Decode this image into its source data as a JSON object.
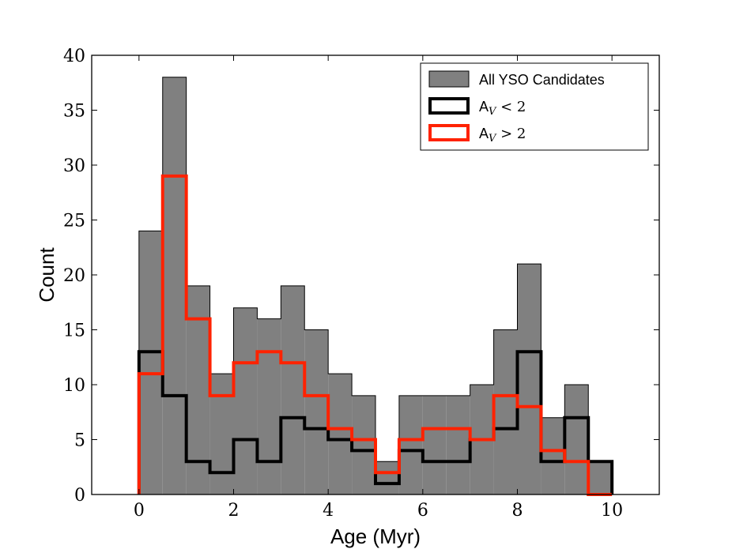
{
  "chart_data": {
    "type": "histogram",
    "bin_width": 0.5,
    "bin_start": 0,
    "xlim": [
      -1,
      11
    ],
    "ylim": [
      0,
      40
    ],
    "xticks": [
      0,
      2,
      4,
      6,
      8,
      10
    ],
    "yticks": [
      0,
      5,
      10,
      15,
      20,
      25,
      30,
      35,
      40
    ],
    "xlabel": "Age (Myr)",
    "ylabel": "Count",
    "legend_position": "top-right",
    "series": [
      {
        "name": "All YSO Candidates",
        "style": "filled",
        "color": "#808080",
        "edge_color": "#000000",
        "values": [
          24,
          38,
          19,
          11,
          17,
          16,
          19,
          15,
          11,
          9,
          3,
          9,
          9,
          9,
          10,
          15,
          21,
          7,
          10,
          3
        ]
      },
      {
        "name": "A_V < 2",
        "legend_label_prefix": "A",
        "legend_label_sub": "V",
        "legend_label_suffix": "< 2",
        "style": "step",
        "color": "#000000",
        "values": [
          13,
          9,
          3,
          2,
          5,
          3,
          7,
          6,
          5,
          4,
          1,
          4,
          3,
          3,
          5,
          6,
          13,
          3,
          7,
          3
        ]
      },
      {
        "name": "A_V > 2",
        "legend_label_prefix": "A",
        "legend_label_sub": "V",
        "legend_label_suffix": "> 2",
        "style": "step",
        "color": "#ff2200",
        "values": [
          11,
          29,
          16,
          9,
          12,
          13,
          12,
          9,
          6,
          5,
          2,
          5,
          6,
          6,
          5,
          9,
          8,
          4,
          3,
          0
        ]
      }
    ]
  }
}
